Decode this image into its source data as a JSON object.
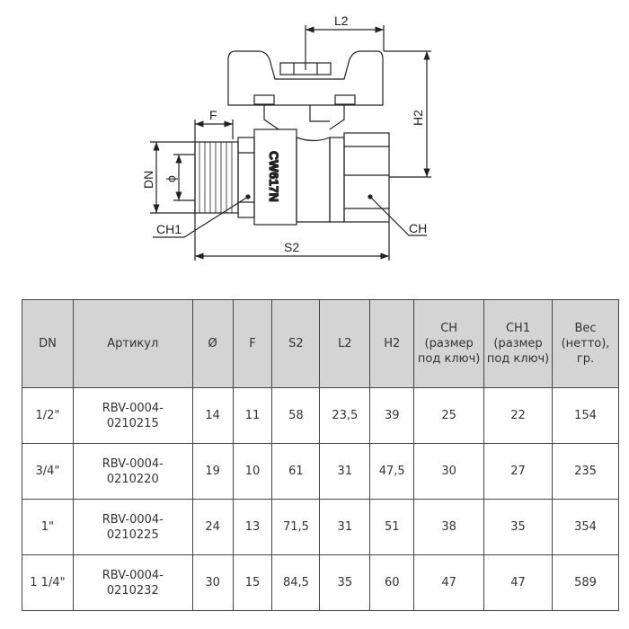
{
  "drawing": {
    "labels": {
      "l2": "L2",
      "h2": "H2",
      "f": "F",
      "dn": "DN",
      "phi": "ϕ",
      "ch1": "CH1",
      "ch": "CH",
      "s2": "S2",
      "body_mark": "CW617N"
    }
  },
  "table": {
    "headers": [
      "DN",
      "Артикул",
      "Ø",
      "F",
      "S2",
      "L2",
      "H2",
      "CH (размер под ключ)",
      "CH1 (размер под ключ)",
      "Вес (нетто), гр."
    ],
    "rows": [
      [
        "1/2\"",
        "RBV-0004-0210215",
        "14",
        "11",
        "58",
        "23,5",
        "39",
        "25",
        "22",
        "154"
      ],
      [
        "3/4\"",
        "RBV-0004-0210220",
        "19",
        "10",
        "61",
        "31",
        "47,5",
        "30",
        "27",
        "235"
      ],
      [
        "1\"",
        "RBV-0004-0210225",
        "24",
        "13",
        "71,5",
        "31",
        "51",
        "38",
        "35",
        "354"
      ],
      [
        "1 1/4\"",
        "RBV-0004-0210232",
        "30",
        "15",
        "84,5",
        "35",
        "60",
        "47",
        "47",
        "589"
      ]
    ]
  }
}
